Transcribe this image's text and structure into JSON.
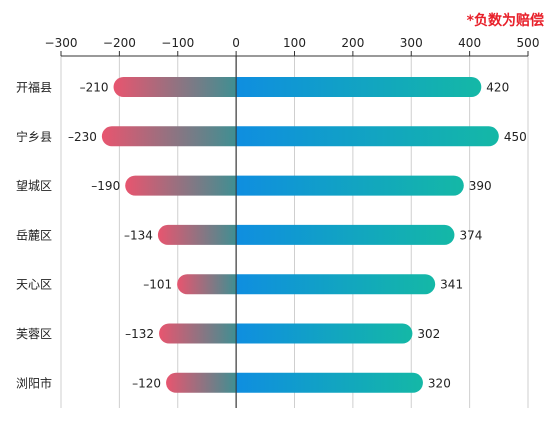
{
  "note": "*负数为赔偿",
  "chart_data": {
    "type": "bar",
    "orientation": "horizontal",
    "categories": [
      "开福县",
      "宁乡县",
      "望城区",
      "岳麓区",
      "天心区",
      "芙蓉区",
      "浏阳市"
    ],
    "series": [
      {
        "values": [
          -210,
          -230,
          -190,
          -134,
          -101,
          -132,
          -120
        ],
        "color_start": "#e8556f",
        "color_end": "#3f8f92"
      },
      {
        "values": [
          420,
          450,
          390,
          374,
          341,
          302,
          320
        ],
        "color_start": "#0f8ee0",
        "color_end": "#14b8a6"
      }
    ],
    "xlim": [
      -300,
      500
    ],
    "xticks": [
      -300,
      -200,
      -100,
      0,
      100,
      200,
      300,
      400,
      500
    ],
    "xtick_labels": [
      "−300",
      "−200",
      "−100",
      "0",
      "100",
      "200",
      "300",
      "400",
      "500"
    ],
    "negative_value_prefix": "–",
    "grid": true,
    "xaxis_position": "top",
    "legend": "none"
  }
}
